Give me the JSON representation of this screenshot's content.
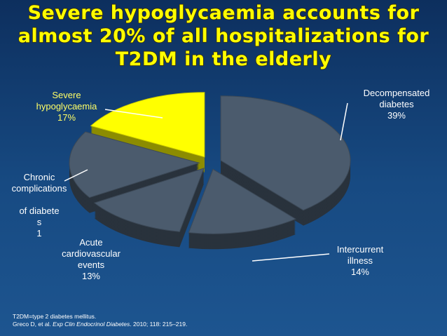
{
  "chart_data": {
    "type": "pie3d",
    "title": "Severe hypoglycaemia accounts for\nalmost 20% of all hospitalizations for\nT2DM in the elderly",
    "categories": [
      "Decompensated\ndiabetes",
      "Intercurrent\nillness",
      "Acute\ncardiovascular\nevents",
      "Chronic\ncomplications\n\nof diabete\ns\n1",
      "Severe\nhypoglycaemia"
    ],
    "values": [
      39,
      14,
      13,
      17,
      17
    ],
    "value_labels": [
      "39%",
      "14%",
      "13%",
      null,
      "17%"
    ],
    "colors": [
      "#4b5b6d",
      "#4b5b6d",
      "#4b5b6d",
      "#4b5b6d",
      "#ffff00"
    ],
    "label_colors": [
      "#ffffff",
      "#ffffff",
      "#ffffff",
      "#ffffff",
      "#ffff66"
    ],
    "footnotes": [
      [
        "T2DM=type 2 diabetes mellitus."
      ],
      [
        "Greco D, et al. ",
        "Exp Clin Endocrinol Diabetes",
        ". 2010; 118: 215–219."
      ]
    ]
  }
}
